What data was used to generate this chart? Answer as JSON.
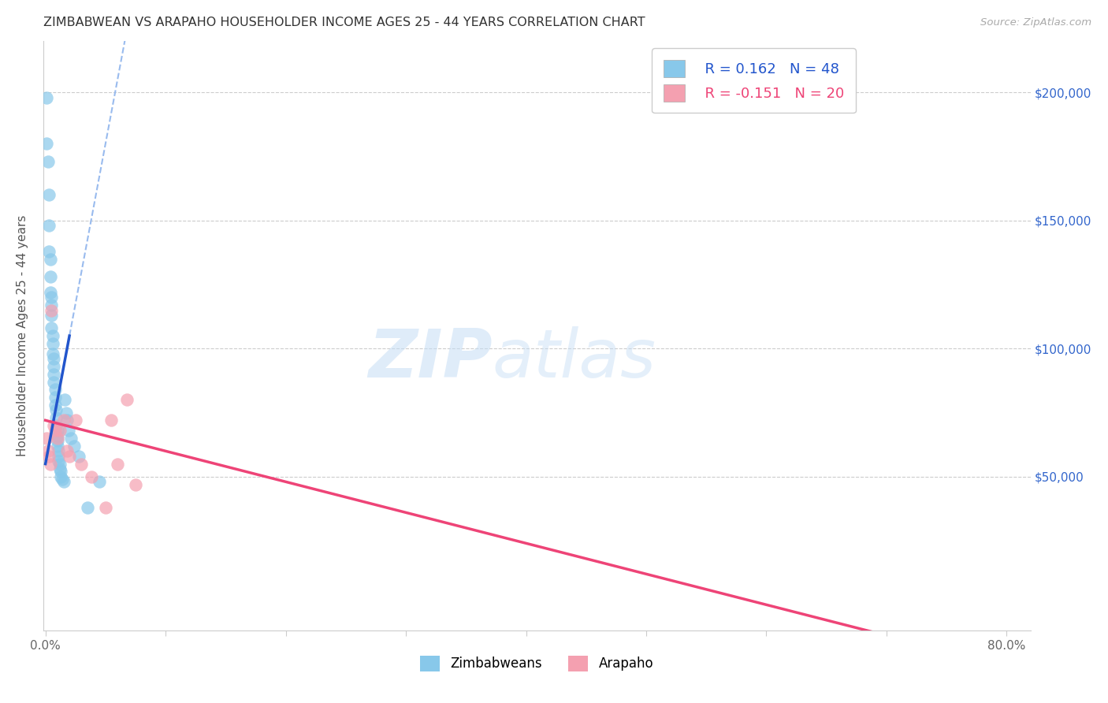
{
  "title": "ZIMBABWEAN VS ARAPAHO HOUSEHOLDER INCOME AGES 25 - 44 YEARS CORRELATION CHART",
  "source": "Source: ZipAtlas.com",
  "ylabel": "Householder Income Ages 25 - 44 years",
  "yticks": [
    50000,
    100000,
    150000,
    200000
  ],
  "ytick_labels": [
    "$50,000",
    "$100,000",
    "$150,000",
    "$200,000"
  ],
  "zimbabwe_color": "#88C8EA",
  "arapaho_color": "#F4A0B0",
  "zimbabwe_line_solid_color": "#2255CC",
  "zimbabwe_line_dash_color": "#99BBEE",
  "arapaho_line_color": "#EE4477",
  "legend1_r": "0.162",
  "legend1_n": "48",
  "legend2_r": "-0.151",
  "legend2_n": "20",
  "zimbabwe_x": [
    0.001,
    0.001,
    0.002,
    0.003,
    0.003,
    0.003,
    0.004,
    0.004,
    0.004,
    0.005,
    0.005,
    0.005,
    0.005,
    0.006,
    0.006,
    0.006,
    0.007,
    0.007,
    0.007,
    0.007,
    0.008,
    0.008,
    0.008,
    0.009,
    0.009,
    0.009,
    0.01,
    0.01,
    0.01,
    0.01,
    0.011,
    0.011,
    0.011,
    0.012,
    0.012,
    0.013,
    0.013,
    0.014,
    0.015,
    0.016,
    0.017,
    0.018,
    0.019,
    0.021,
    0.024,
    0.028,
    0.035,
    0.045
  ],
  "zimbabwe_y": [
    198000,
    180000,
    173000,
    160000,
    148000,
    138000,
    135000,
    128000,
    122000,
    120000,
    117000,
    113000,
    108000,
    105000,
    102000,
    98000,
    96000,
    93000,
    90000,
    87000,
    84000,
    81000,
    78000,
    76000,
    73000,
    70000,
    68000,
    66000,
    64000,
    62000,
    60000,
    58000,
    56000,
    55000,
    53000,
    52000,
    50000,
    49000,
    48000,
    80000,
    75000,
    72000,
    68000,
    65000,
    62000,
    58000,
    38000,
    48000
  ],
  "arapaho_x": [
    0.001,
    0.002,
    0.003,
    0.004,
    0.005,
    0.007,
    0.008,
    0.01,
    0.012,
    0.015,
    0.018,
    0.02,
    0.025,
    0.03,
    0.038,
    0.05,
    0.055,
    0.06,
    0.068,
    0.075
  ],
  "arapaho_y": [
    65000,
    60000,
    58000,
    55000,
    115000,
    70000,
    68000,
    65000,
    68000,
    72000,
    60000,
    58000,
    72000,
    55000,
    50000,
    38000,
    72000,
    55000,
    80000,
    47000
  ],
  "xlim_min": -0.002,
  "xlim_max": 0.82,
  "ylim_min": -10000,
  "ylim_max": 220000,
  "xticks": [
    0.0,
    0.1,
    0.2,
    0.3,
    0.4,
    0.5,
    0.6,
    0.7,
    0.8
  ],
  "xtick_labels": [
    "0.0%",
    "",
    "",
    "",
    "",
    "",
    "",
    "",
    "80.0%"
  ],
  "marker_size": 140,
  "figwidth": 14.06,
  "figheight": 8.92,
  "dpi": 100
}
